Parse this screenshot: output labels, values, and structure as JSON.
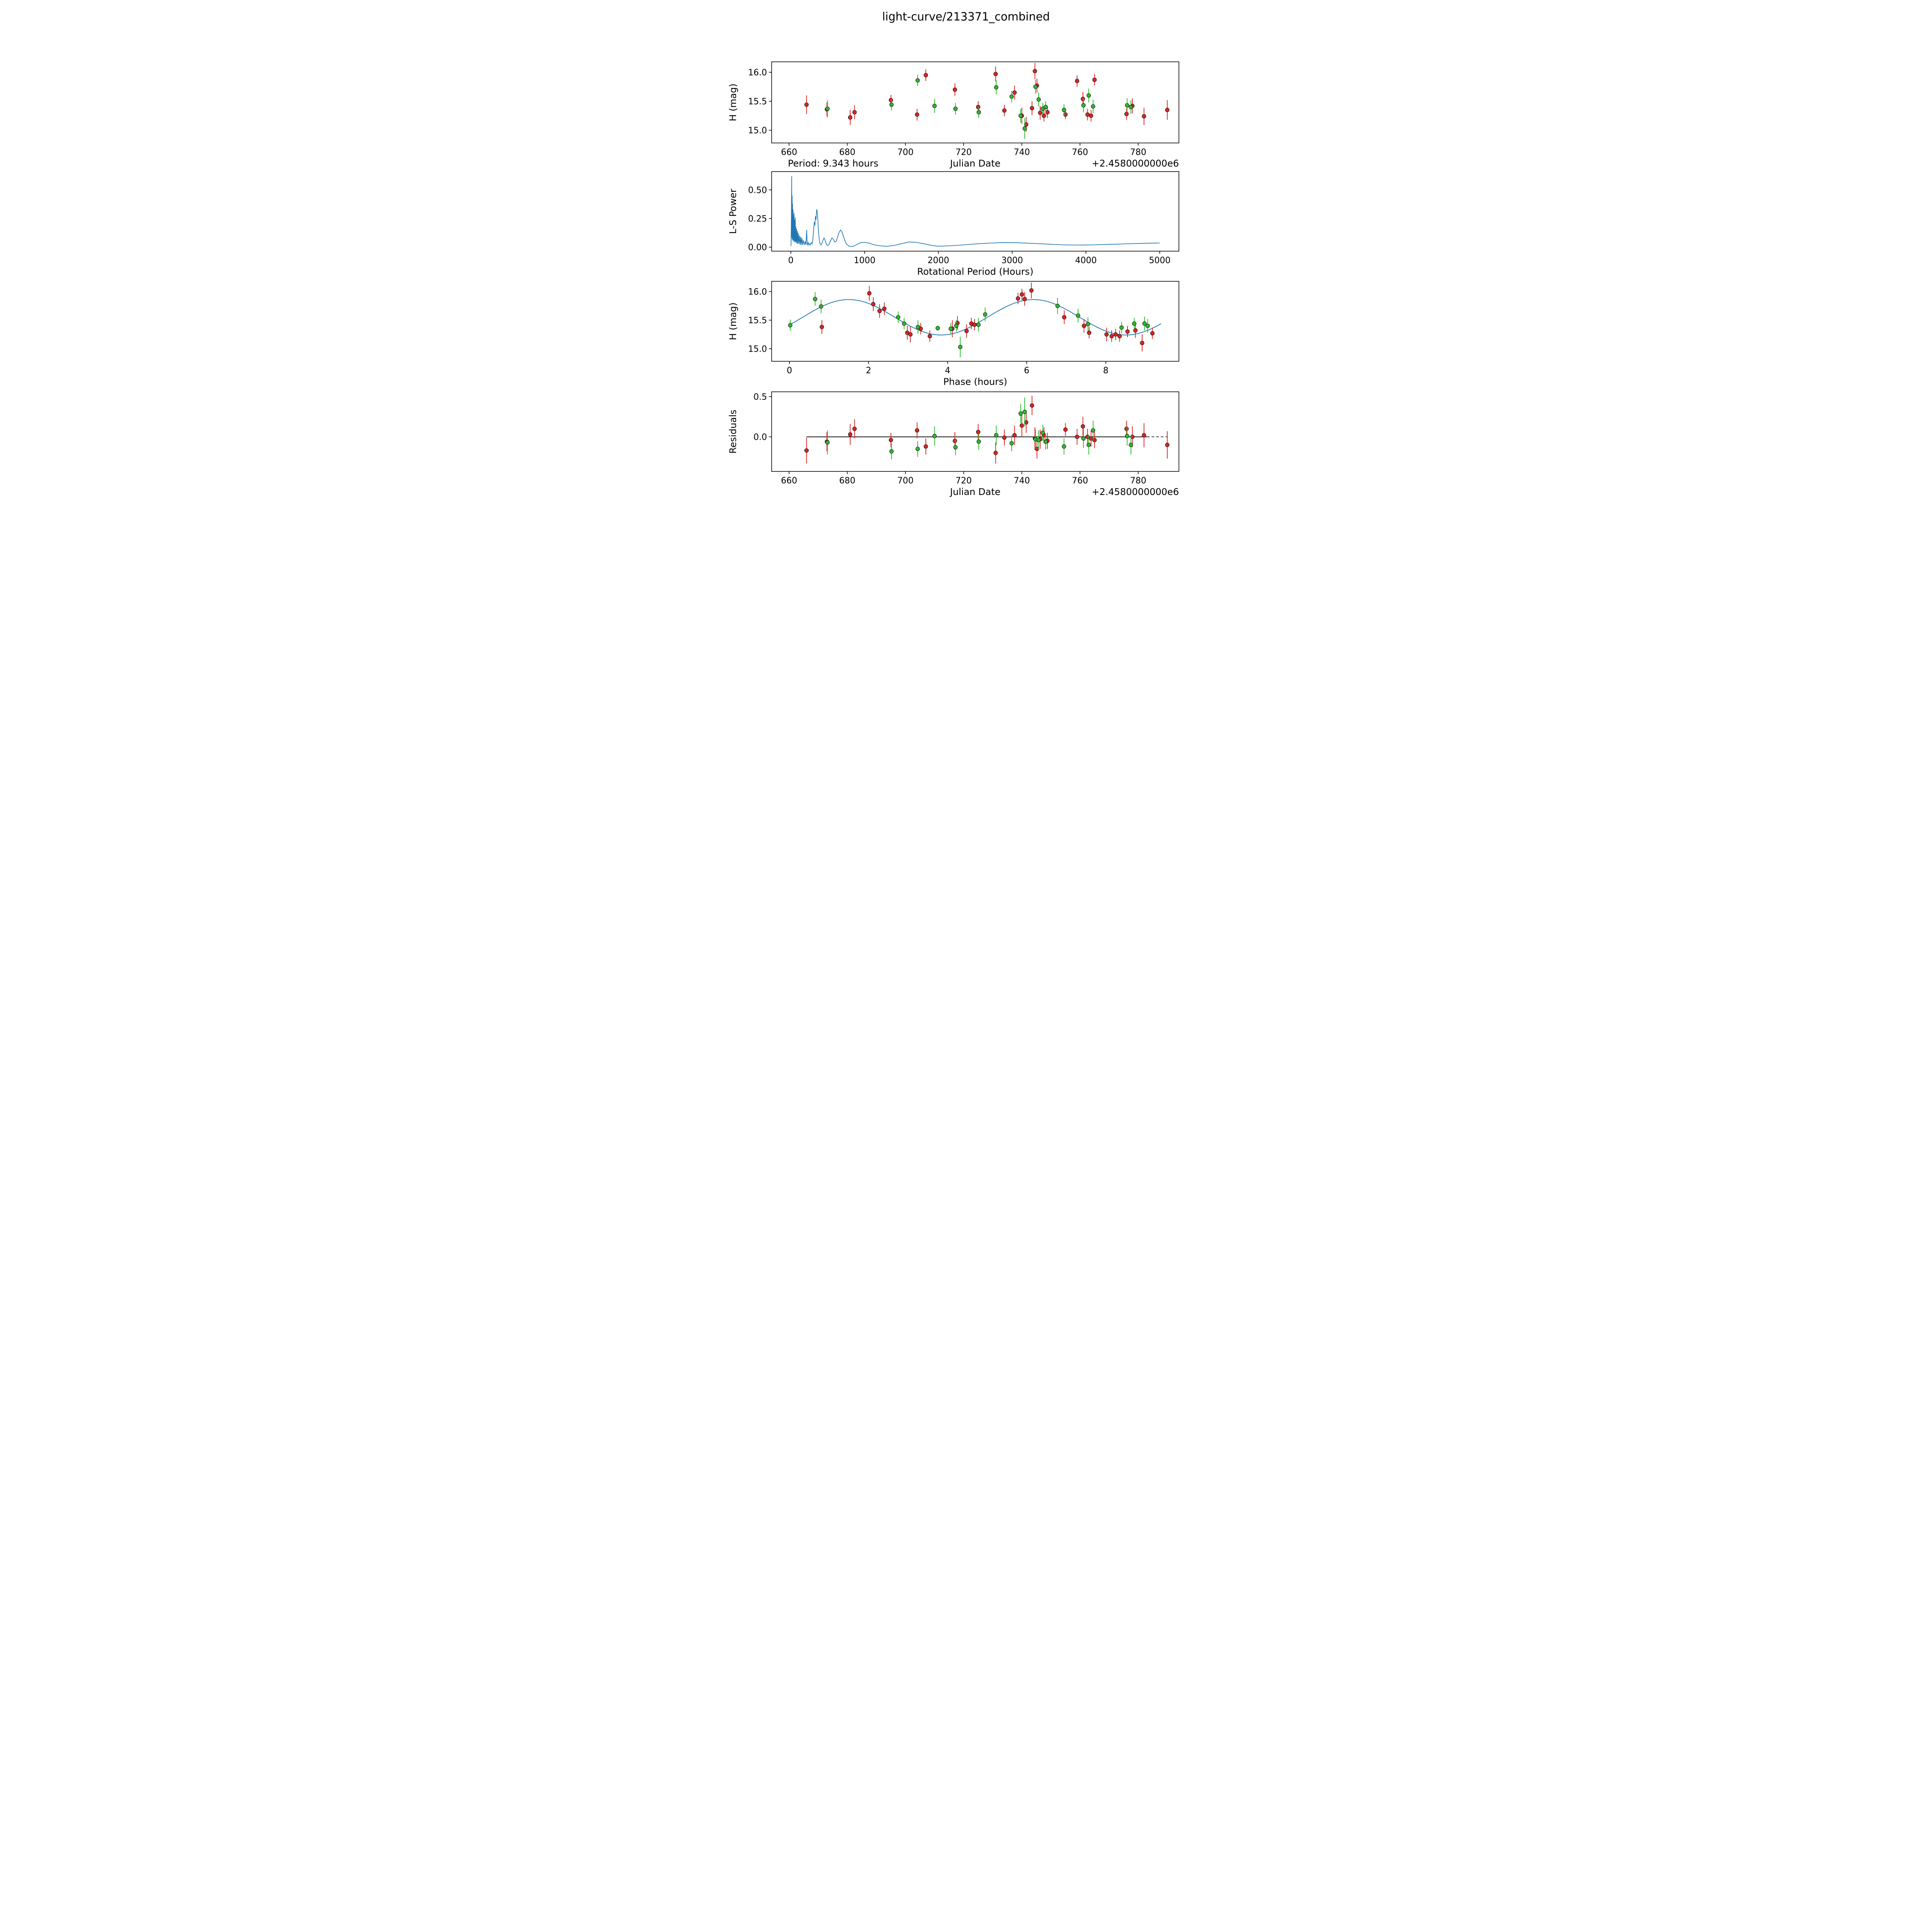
{
  "figure": {
    "title": "light-curve/213371_combined",
    "background": "#ffffff"
  },
  "chart_data": [
    {
      "id": "jd_lightcurve",
      "type": "scatter",
      "xlabel": "Julian Date",
      "ylabel": "H (mag)",
      "x_offset_text": "+2.4580000000e6",
      "annotation_left": "Period: 9.343 hours",
      "xlim": [
        654,
        794
      ],
      "ylim": [
        14.78,
        16.18
      ],
      "xticks": [
        660,
        680,
        700,
        720,
        740,
        760,
        780
      ],
      "xtick_labels": [
        "660",
        "680",
        "700",
        "720",
        "740",
        "760",
        "780"
      ],
      "yticks": [
        15.0,
        15.5,
        16.0
      ],
      "ytick_labels": [
        "15.0",
        "15.5",
        "16.0"
      ],
      "series": [
        {
          "name": "red",
          "color": "#dd2222",
          "x": [
            666.0,
            673.0,
            681.0,
            682.5,
            695.0,
            704.0,
            707.0,
            717.0,
            725.0,
            731.0,
            734.0,
            737.5,
            740.0,
            741.5,
            743.5,
            744.5,
            745.2,
            746.3,
            747.6,
            748.8,
            755.0,
            759.0,
            761.0,
            762.6,
            763.8,
            765.0,
            776.0,
            778.0,
            782.0,
            790.0
          ],
          "y": [
            15.44,
            15.36,
            15.22,
            15.31,
            15.52,
            15.27,
            15.95,
            15.7,
            15.4,
            15.97,
            15.34,
            15.65,
            15.25,
            15.1,
            15.38,
            16.02,
            15.77,
            15.3,
            15.25,
            15.31,
            15.27,
            15.85,
            15.54,
            15.27,
            15.25,
            15.87,
            15.28,
            15.42,
            15.24,
            15.35
          ],
          "yerr": [
            0.16,
            0.12,
            0.13,
            0.12,
            0.09,
            0.1,
            0.1,
            0.11,
            0.1,
            0.13,
            0.1,
            0.12,
            0.14,
            0.13,
            0.12,
            0.14,
            0.12,
            0.12,
            0.1,
            0.1,
            0.08,
            0.1,
            0.12,
            0.1,
            0.1,
            0.1,
            0.1,
            0.13,
            0.15,
            0.17
          ]
        },
        {
          "name": "green",
          "color": "#2db92d",
          "x": [
            673.2,
            695.2,
            704.2,
            710.0,
            717.2,
            725.2,
            731.2,
            736.5,
            739.6,
            741.0,
            744.7,
            745.8,
            747.2,
            748.2,
            754.5,
            761.2,
            763.0,
            764.5,
            776.2,
            777.5
          ],
          "y": [
            15.37,
            15.44,
            15.86,
            15.42,
            15.37,
            15.31,
            15.74,
            15.58,
            15.25,
            15.03,
            15.75,
            15.53,
            15.37,
            15.4,
            15.35,
            15.43,
            15.6,
            15.41,
            15.43,
            15.4
          ],
          "yerr": [
            0.15,
            0.1,
            0.1,
            0.12,
            0.1,
            0.1,
            0.12,
            0.1,
            0.12,
            0.18,
            0.12,
            0.12,
            0.1,
            0.1,
            0.1,
            0.12,
            0.12,
            0.12,
            0.12,
            0.12
          ]
        }
      ]
    },
    {
      "id": "periodogram",
      "type": "line",
      "xlabel": "Rotational Period (Hours)",
      "ylabel": "L-S Power",
      "xlim": [
        -260,
        5260
      ],
      "ylim": [
        -0.035,
        0.66
      ],
      "xticks": [
        0,
        1000,
        2000,
        3000,
        4000,
        5000
      ],
      "xtick_labels": [
        "0",
        "1000",
        "2000",
        "3000",
        "4000",
        "5000"
      ],
      "yticks": [
        0.0,
        0.25,
        0.5
      ],
      "ytick_labels": [
        "0.00",
        "0.25",
        "0.50"
      ],
      "line_color": "#1f77b4",
      "x": [
        3,
        8,
        12,
        14,
        18,
        20,
        23,
        26,
        30,
        33,
        36,
        40,
        44,
        48,
        52,
        56,
        60,
        64,
        68,
        73,
        78,
        84,
        90,
        96,
        103,
        110,
        118,
        126,
        134,
        142,
        150,
        160,
        170,
        182,
        195,
        205,
        215,
        222,
        228,
        236,
        245,
        255,
        265,
        278,
        290,
        300,
        310,
        318,
        326,
        334,
        342,
        350,
        358,
        366,
        375,
        385,
        395,
        408,
        420,
        435,
        450,
        465,
        480,
        495,
        515,
        535,
        555,
        575,
        595,
        615,
        635,
        655,
        675,
        695,
        720,
        750,
        790,
        840,
        900,
        950,
        1000,
        1060,
        1130,
        1200,
        1300,
        1400,
        1500,
        1600,
        1700,
        1800,
        1900,
        2000,
        2150,
        2300,
        2500,
        2700,
        2900,
        3100,
        3300,
        3500,
        3700,
        3900,
        4100,
        4300,
        4500,
        4700,
        4900,
        5000
      ],
      "y": [
        0.01,
        0.3,
        0.62,
        0.08,
        0.45,
        0.06,
        0.38,
        0.07,
        0.33,
        0.05,
        0.28,
        0.06,
        0.3,
        0.05,
        0.24,
        0.04,
        0.26,
        0.05,
        0.18,
        0.04,
        0.16,
        0.03,
        0.14,
        0.03,
        0.12,
        0.03,
        0.1,
        0.02,
        0.09,
        0.02,
        0.08,
        0.02,
        0.06,
        0.02,
        0.05,
        0.02,
        0.15,
        0.03,
        0.02,
        0.04,
        0.02,
        0.03,
        0.02,
        0.04,
        0.03,
        0.08,
        0.16,
        0.22,
        0.19,
        0.27,
        0.24,
        0.33,
        0.31,
        0.24,
        0.14,
        0.07,
        0.03,
        0.02,
        0.03,
        0.06,
        0.08,
        0.06,
        0.03,
        0.015,
        0.02,
        0.05,
        0.08,
        0.07,
        0.045,
        0.05,
        0.09,
        0.13,
        0.15,
        0.13,
        0.08,
        0.03,
        0.008,
        0.005,
        0.025,
        0.04,
        0.042,
        0.035,
        0.02,
        0.012,
        0.007,
        0.015,
        0.03,
        0.045,
        0.042,
        0.03,
        0.016,
        0.008,
        0.012,
        0.018,
        0.028,
        0.036,
        0.04,
        0.038,
        0.032,
        0.026,
        0.02,
        0.018,
        0.02,
        0.024,
        0.028,
        0.032,
        0.035,
        0.036
      ]
    },
    {
      "id": "phase_folded",
      "type": "scatter_with_fit",
      "xlabel": "Phase (hours)",
      "ylabel": "H (mag)",
      "xlim": [
        -0.45,
        9.85
      ],
      "ylim": [
        14.78,
        16.18
      ],
      "xticks": [
        0,
        2,
        4,
        6,
        8
      ],
      "xtick_labels": [
        "0",
        "2",
        "4",
        "6",
        "8"
      ],
      "yticks": [
        15.0,
        15.5,
        16.0
      ],
      "ytick_labels": [
        "15.0",
        "15.5",
        "16.0"
      ],
      "fit": {
        "mean": 15.55,
        "amplitude": 0.31,
        "period_hours": 9.343,
        "n_cycles_shown": 2,
        "phase_of_max": 1.5,
        "x_start": 0.0,
        "x_end": 9.4,
        "color": "#1f77b4"
      },
      "series": [
        {
          "name": "red",
          "color": "#dd2222",
          "x": [
            0.82,
            2.02,
            2.12,
            2.28,
            2.4,
            2.98,
            3.06,
            3.32,
            3.55,
            4.12,
            4.25,
            4.48,
            4.6,
            4.68,
            5.78,
            5.88,
            5.95,
            6.12,
            6.95,
            7.45,
            7.58,
            8.02,
            8.15,
            8.25,
            8.35,
            8.55,
            8.75,
            8.92,
            9.18
          ],
          "y": [
            15.38,
            15.97,
            15.78,
            15.66,
            15.7,
            15.28,
            15.25,
            15.35,
            15.22,
            15.35,
            15.45,
            15.31,
            15.44,
            15.42,
            15.88,
            15.95,
            15.87,
            16.02,
            15.55,
            15.4,
            15.28,
            15.25,
            15.22,
            15.25,
            15.22,
            15.3,
            15.32,
            15.1,
            15.27
          ],
          "yerr": [
            0.12,
            0.13,
            0.12,
            0.12,
            0.11,
            0.12,
            0.14,
            0.1,
            0.1,
            0.15,
            0.12,
            0.12,
            0.1,
            0.1,
            0.1,
            0.1,
            0.12,
            0.14,
            0.12,
            0.12,
            0.1,
            0.12,
            0.1,
            0.1,
            0.1,
            0.1,
            0.13,
            0.15,
            0.1
          ]
        },
        {
          "name": "green",
          "color": "#2db92d",
          "x": [
            0.02,
            0.65,
            0.8,
            2.75,
            2.9,
            3.25,
            3.75,
            4.08,
            4.22,
            4.32,
            4.78,
            4.95,
            6.78,
            7.3,
            7.55,
            8.4,
            8.72,
            8.98,
            9.06
          ],
          "y": [
            15.41,
            15.87,
            15.74,
            15.55,
            15.44,
            15.38,
            15.36,
            15.35,
            15.4,
            15.03,
            15.42,
            15.6,
            15.75,
            15.58,
            15.43,
            15.37,
            15.44,
            15.44,
            15.4
          ],
          "yerr": [
            0.1,
            0.12,
            0.12,
            0.1,
            0.1,
            0.12,
            0.04,
            0.1,
            0.1,
            0.18,
            0.12,
            0.12,
            0.14,
            0.12,
            0.12,
            0.1,
            0.1,
            0.12,
            0.12
          ]
        }
      ]
    },
    {
      "id": "residuals",
      "type": "scatter",
      "xlabel": "Julian Date",
      "ylabel": "Residuals",
      "x_offset_text": "+2.4580000000e6",
      "xlim": [
        654,
        794
      ],
      "ylim": [
        -0.43,
        0.56
      ],
      "xticks": [
        660,
        680,
        700,
        720,
        740,
        760,
        780
      ],
      "xtick_labels": [
        "660",
        "680",
        "700",
        "720",
        "740",
        "760",
        "780"
      ],
      "yticks": [
        0.0,
        0.5
      ],
      "ytick_labels": [
        "0.0",
        "0.5"
      ],
      "zero_line": {
        "solid_from": 666,
        "solid_to": 783,
        "dashed_to": 790,
        "color": "#000000"
      },
      "series": [
        {
          "name": "red",
          "color": "#dd2222",
          "x": [
            666.0,
            673.0,
            681.0,
            682.5,
            695.0,
            704.0,
            707.0,
            717.0,
            725.0,
            731.0,
            734.0,
            737.5,
            740.0,
            741.5,
            743.5,
            744.5,
            745.2,
            746.3,
            747.6,
            748.8,
            755.0,
            759.0,
            761.0,
            762.6,
            763.8,
            765.0,
            776.0,
            778.0,
            782.0,
            790.0
          ],
          "y": [
            -0.17,
            -0.06,
            0.03,
            0.1,
            -0.04,
            0.08,
            -0.12,
            -0.05,
            0.06,
            -0.2,
            -0.01,
            0.02,
            0.14,
            0.18,
            0.39,
            -0.02,
            -0.15,
            -0.03,
            0.02,
            -0.05,
            0.09,
            0.0,
            0.13,
            0.0,
            -0.02,
            -0.04,
            0.1,
            0.0,
            0.02,
            -0.1
          ],
          "yerr": [
            0.16,
            0.12,
            0.13,
            0.12,
            0.09,
            0.1,
            0.1,
            0.11,
            0.1,
            0.13,
            0.1,
            0.12,
            0.14,
            0.13,
            0.12,
            0.14,
            0.12,
            0.12,
            0.1,
            0.1,
            0.08,
            0.1,
            0.12,
            0.1,
            0.1,
            0.1,
            0.1,
            0.13,
            0.15,
            0.17
          ]
        },
        {
          "name": "green",
          "color": "#2db92d",
          "x": [
            673.2,
            695.2,
            704.2,
            710.0,
            717.2,
            725.2,
            731.2,
            736.5,
            739.6,
            741.0,
            744.7,
            745.8,
            747.2,
            748.2,
            754.5,
            761.2,
            763.0,
            764.5,
            776.2,
            777.5
          ],
          "y": [
            -0.07,
            -0.18,
            -0.15,
            0.01,
            -0.13,
            -0.06,
            0.02,
            -0.08,
            0.29,
            0.31,
            -0.03,
            -0.04,
            0.05,
            -0.06,
            -0.12,
            -0.02,
            -0.1,
            0.08,
            0.01,
            -0.1
          ],
          "yerr": [
            0.15,
            0.1,
            0.1,
            0.12,
            0.1,
            0.1,
            0.12,
            0.1,
            0.12,
            0.18,
            0.12,
            0.12,
            0.1,
            0.1,
            0.1,
            0.12,
            0.12,
            0.12,
            0.12,
            0.12
          ]
        }
      ]
    }
  ]
}
